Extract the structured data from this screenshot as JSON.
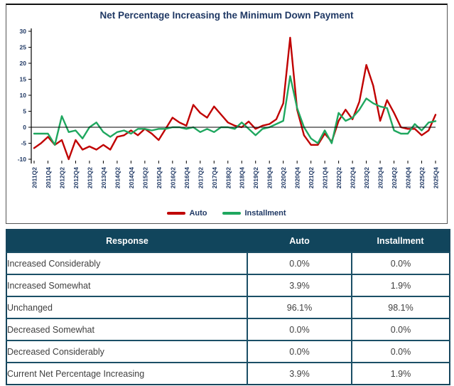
{
  "chart_data": {
    "type": "line",
    "title": "Net Percentage Increasing the Minimum Down Payment",
    "xlabel": "",
    "ylabel": "",
    "ylim": [
      -10,
      30
    ],
    "ytick_step": 5,
    "grid": false,
    "legend_position": "bottom",
    "x_label_every": 2,
    "categories": [
      "2011Q2",
      "2011Q3",
      "2011Q4",
      "2012Q1",
      "2012Q2",
      "2012Q3",
      "2012Q4",
      "2013Q1",
      "2013Q2",
      "2013Q3",
      "2013Q4",
      "2014Q1",
      "2014Q2",
      "2014Q3",
      "2014Q4",
      "2015Q1",
      "2015Q2",
      "2015Q3",
      "2015Q4",
      "2016Q1",
      "2016Q2",
      "2016Q3",
      "2016Q4",
      "2017Q1",
      "2017Q2",
      "2017Q3",
      "2017Q4",
      "2018Q1",
      "2018Q2",
      "2018Q3",
      "2018Q4",
      "2019Q1",
      "2019Q2",
      "2019Q3",
      "2019Q4",
      "2020Q1",
      "2020Q2",
      "2020Q3",
      "2020Q4",
      "2021Q1",
      "2021Q2",
      "2021Q3",
      "2021Q4",
      "2022Q1",
      "2022Q2",
      "2022Q3",
      "2022Q4",
      "2023Q1",
      "2023Q2",
      "2023Q3",
      "2023Q4",
      "2024Q1",
      "2024Q2",
      "2024Q3",
      "2024Q4",
      "2025Q1",
      "2025Q2",
      "2025Q3",
      "2025Q4"
    ],
    "series": [
      {
        "name": "Auto",
        "color": "#C00000",
        "values": [
          -6.5,
          -5,
          -3,
          -5.5,
          -4,
          -10,
          -4,
          -7,
          -6,
          -7,
          -5.5,
          -7,
          -3,
          -2.5,
          -1,
          -2.5,
          -0.5,
          -2,
          -4,
          -0.5,
          3,
          1.5,
          0.5,
          7,
          4.5,
          3,
          6.5,
          4,
          1.5,
          0.5,
          0,
          1.8,
          -0.5,
          0.5,
          1,
          2.5,
          7.5,
          28,
          5.5,
          -2.5,
          -5.5,
          -5.5,
          -2,
          -4.5,
          2,
          5.5,
          2.5,
          8,
          19.5,
          13,
          2,
          8.5,
          4.5,
          0,
          -0.5,
          -0.5,
          -2.5,
          -1,
          3.9
        ]
      },
      {
        "name": "Installment",
        "color": "#1FA75F",
        "values": [
          -2,
          -2,
          -2,
          -5.5,
          3.5,
          -1.5,
          -1,
          -3.5,
          0,
          1.5,
          -1.5,
          -3,
          -1.5,
          -1,
          -2,
          -0.5,
          -0.5,
          -1,
          -0.5,
          -0.5,
          0,
          0,
          -0.5,
          0,
          -1.5,
          -0.5,
          -1.5,
          0,
          0,
          -0.5,
          1.5,
          -0.5,
          -2.5,
          -0.5,
          0,
          1,
          2,
          16,
          6,
          0,
          -3.5,
          -5,
          -1,
          -5,
          4.5,
          2,
          3,
          5.5,
          9,
          7.5,
          6.5,
          6,
          -1,
          -2,
          -2,
          1,
          -1,
          1.5,
          1.9
        ]
      }
    ]
  },
  "table": {
    "headers": [
      "Response",
      "Auto",
      "Installment"
    ],
    "rows": [
      {
        "response": "Increased Considerably",
        "auto": "0.0%",
        "installment": "0.0%"
      },
      {
        "response": "Increased Somewhat",
        "auto": "3.9%",
        "installment": "1.9%"
      },
      {
        "response": "Unchanged",
        "auto": "96.1%",
        "installment": "98.1%"
      },
      {
        "response": "Decreased Somewhat",
        "auto": "0.0%",
        "installment": "0.0%"
      },
      {
        "response": "Decreased Considerably",
        "auto": "0.0%",
        "installment": "0.0%"
      },
      {
        "response": "Current Net Percentage Increasing",
        "auto": "3.9%",
        "installment": "1.9%"
      }
    ]
  },
  "colors": {
    "navy": "#1F3864",
    "table_header_bg": "#11455C",
    "table_border": "#17455C",
    "axis_line": "#000000"
  }
}
